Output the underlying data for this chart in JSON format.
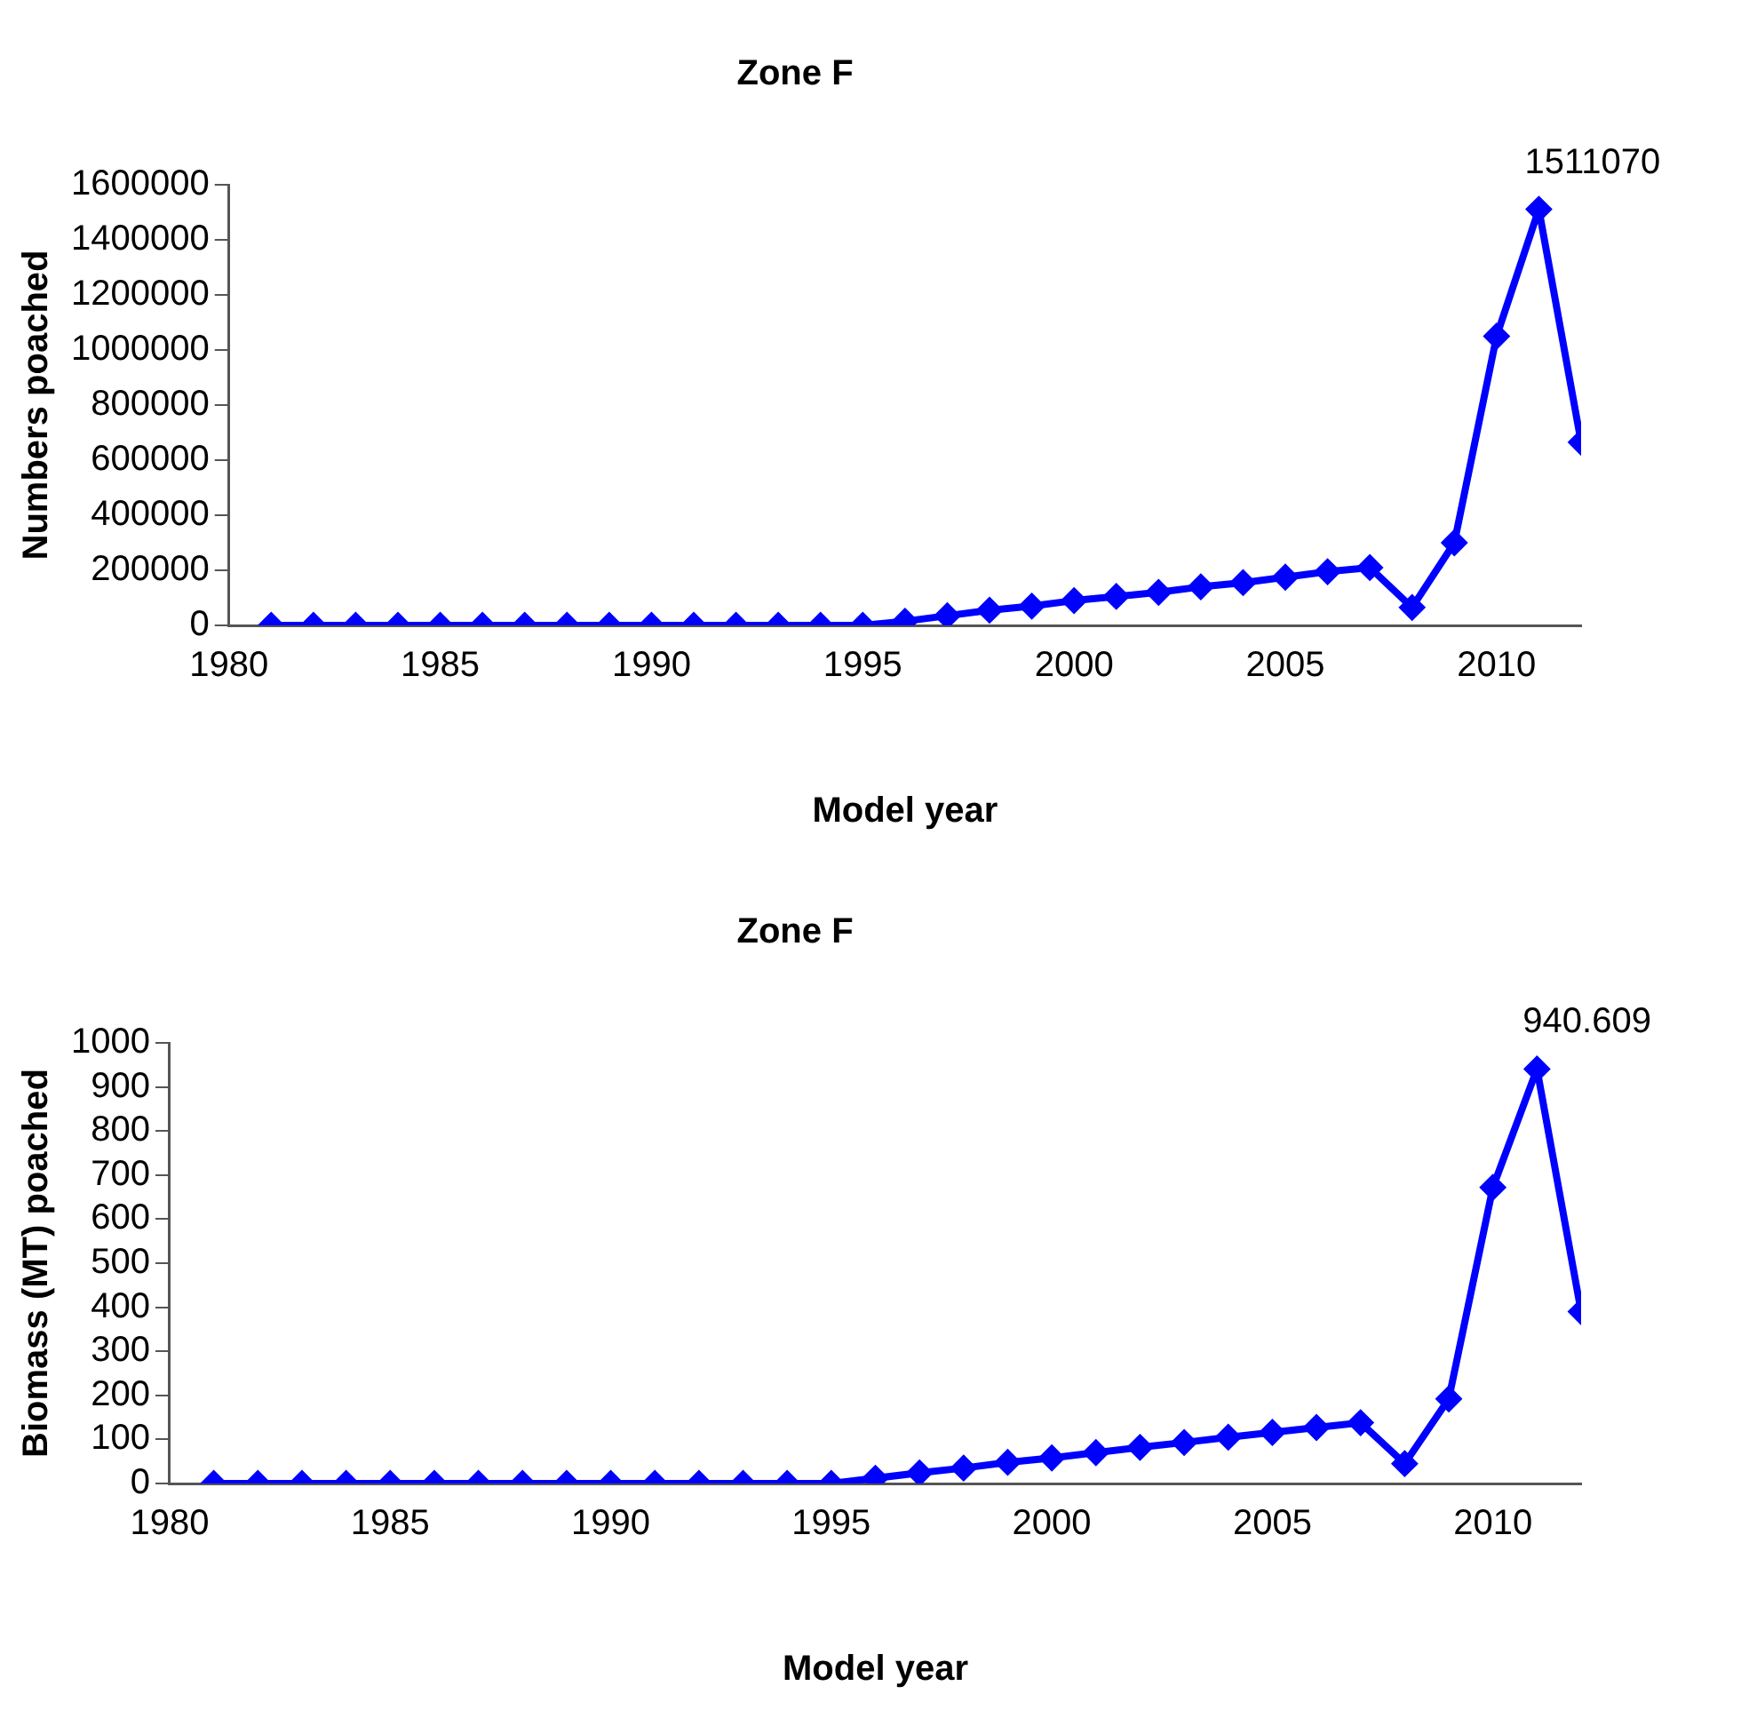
{
  "chart_data": [
    {
      "type": "line",
      "title": "Zone F",
      "xlabel": "Model year",
      "ylabel": "Numbers poached",
      "x": [
        1981,
        1982,
        1983,
        1984,
        1985,
        1986,
        1987,
        1988,
        1989,
        1990,
        1991,
        1992,
        1993,
        1994,
        1995,
        1996,
        1997,
        1998,
        1999,
        2000,
        2001,
        2002,
        2003,
        2004,
        2005,
        2006,
        2007,
        2008,
        2009,
        2010,
        2011,
        2012
      ],
      "series": [
        {
          "color": "#0000ff",
          "values": [
            0,
            0,
            0,
            0,
            0,
            0,
            0,
            0,
            0,
            0,
            0,
            0,
            0,
            0,
            0,
            15000,
            35000,
            55000,
            70000,
            90000,
            105000,
            120000,
            140000,
            155000,
            175000,
            195000,
            210000,
            65000,
            300000,
            1050000,
            1511070,
            665000
          ],
          "value_labels": [
            null,
            null,
            null,
            null,
            null,
            null,
            null,
            null,
            null,
            null,
            null,
            null,
            null,
            null,
            null,
            null,
            null,
            null,
            null,
            null,
            null,
            null,
            null,
            null,
            null,
            null,
            null,
            null,
            null,
            null,
            "1511070",
            null
          ]
        }
      ],
      "xlim": [
        1980,
        2012
      ],
      "xticks": [
        1980,
        1985,
        1990,
        1995,
        2000,
        2005,
        2010
      ],
      "ylim": [
        0,
        1600000
      ],
      "yticks": [
        0,
        200000,
        400000,
        600000,
        800000,
        1000000,
        1200000,
        1400000,
        1600000
      ],
      "grid": false,
      "legend": false,
      "marker": "diamond",
      "line_style": "solid"
    },
    {
      "type": "line",
      "title": "Zone F",
      "xlabel": "Model year",
      "ylabel": "Biomass (MT) poached",
      "x": [
        1981,
        1982,
        1983,
        1984,
        1985,
        1986,
        1987,
        1988,
        1989,
        1990,
        1991,
        1992,
        1993,
        1994,
        1995,
        1996,
        1997,
        1998,
        1999,
        2000,
        2001,
        2002,
        2003,
        2004,
        2005,
        2006,
        2007,
        2008,
        2009,
        2010,
        2011,
        2012
      ],
      "series": [
        {
          "color": "#0000ff",
          "values": [
            0,
            0,
            0,
            0,
            0,
            0,
            0,
            0,
            0,
            0,
            0,
            0,
            0,
            0,
            0,
            12,
            24,
            35,
            48,
            58,
            70,
            82,
            93,
            105,
            116,
            127,
            138,
            45,
            192,
            672,
            940.609,
            390
          ],
          "value_labels": [
            null,
            null,
            null,
            null,
            null,
            null,
            null,
            null,
            null,
            null,
            null,
            null,
            null,
            null,
            null,
            null,
            null,
            null,
            null,
            null,
            null,
            null,
            null,
            null,
            null,
            null,
            null,
            null,
            null,
            null,
            "940.609",
            null
          ]
        }
      ],
      "xlim": [
        1980,
        2012
      ],
      "xticks": [
        1980,
        1985,
        1990,
        1995,
        2000,
        2005,
        2010
      ],
      "ylim": [
        0,
        1000
      ],
      "yticks": [
        0,
        100,
        200,
        300,
        400,
        500,
        600,
        700,
        800,
        900,
        1000
      ],
      "grid": false,
      "legend": false,
      "marker": "diamond",
      "line_style": "solid"
    }
  ]
}
